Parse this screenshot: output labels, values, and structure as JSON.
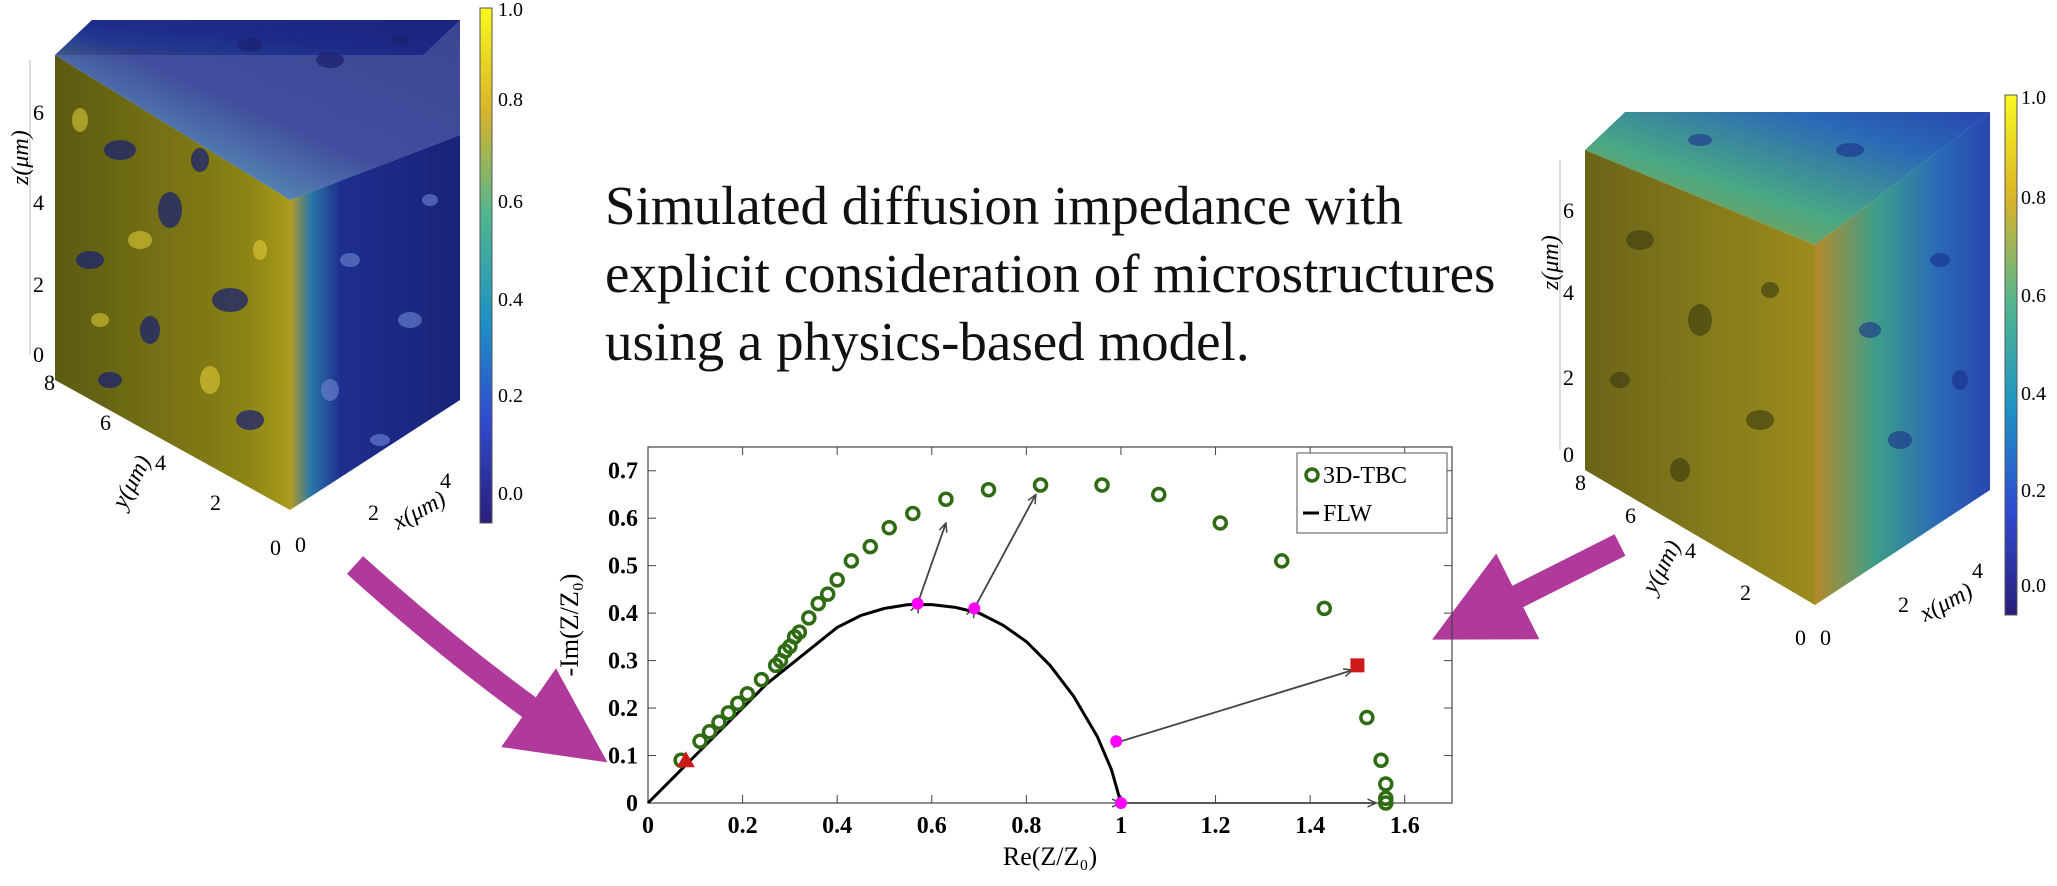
{
  "headline": {
    "line1": "Simulated diffusion impedance with",
    "line2": "explicit consideration of microstructures",
    "line3": "using a physics-based model."
  },
  "colors": {
    "tbc_marker": "#2e6b12",
    "flw_line": "#000000",
    "highlight_point": "#ff00ff",
    "red_marker": "#cc1a1a",
    "arrow_big": "#b03a9c",
    "arrow_small": "#444444",
    "cube_yellow": "#c9b21c",
    "cube_blue": "#1e2f8a"
  },
  "left_cube": {
    "colorbar_ticks": [
      "1.0",
      "0.8",
      "0.6",
      "0.4",
      "0.2",
      "0.0"
    ],
    "z_label": "z(μm)",
    "z_ticks": [
      "6",
      "4",
      "2",
      "0"
    ],
    "y_label": "y(μm)",
    "y_ticks": [
      "8",
      "6",
      "4",
      "2",
      "0"
    ],
    "x_label": "x(μm)",
    "x_ticks": [
      "0",
      "2",
      "4"
    ]
  },
  "right_cube": {
    "colorbar_ticks": [
      "1.0",
      "0.8",
      "0.6",
      "0.4",
      "0.2",
      "0.0"
    ],
    "z_label": "z(μm)",
    "z_ticks": [
      "6",
      "4",
      "2",
      "0"
    ],
    "y_label": "y(μm)",
    "y_ticks": [
      "8",
      "6",
      "4",
      "2",
      "0"
    ],
    "x_label": "x(μm)",
    "x_ticks": [
      "0",
      "2",
      "4"
    ]
  },
  "chart_data": {
    "type": "scatter",
    "title": "",
    "xlabel": "Re(Z/Z₀)",
    "ylabel": "-Im(Z/Z₀)",
    "xlim": [
      0,
      1.7
    ],
    "ylim": [
      0,
      0.75
    ],
    "x_ticks": [
      "0",
      "0.2",
      "0.4",
      "0.6",
      "0.8",
      "1",
      "1.2",
      "1.4",
      "1.6"
    ],
    "y_ticks": [
      "0",
      "0.1",
      "0.2",
      "0.3",
      "0.4",
      "0.5",
      "0.6",
      "0.7"
    ],
    "grid": false,
    "legend_position": "top-right",
    "series": [
      {
        "name": "3D-TBC",
        "marker": "circle",
        "x": [
          0.07,
          0.11,
          0.13,
          0.15,
          0.17,
          0.19,
          0.21,
          0.24,
          0.27,
          0.28,
          0.29,
          0.3,
          0.31,
          0.32,
          0.34,
          0.36,
          0.38,
          0.4,
          0.43,
          0.47,
          0.51,
          0.56,
          0.63,
          0.72,
          0.83,
          0.96,
          1.08,
          1.21,
          1.34,
          1.43,
          1.52,
          1.55,
          1.56,
          1.56,
          1.56
        ],
        "y": [
          0.09,
          0.13,
          0.15,
          0.17,
          0.19,
          0.21,
          0.23,
          0.26,
          0.29,
          0.3,
          0.32,
          0.33,
          0.35,
          0.36,
          0.39,
          0.42,
          0.44,
          0.47,
          0.51,
          0.54,
          0.58,
          0.61,
          0.64,
          0.66,
          0.67,
          0.67,
          0.65,
          0.59,
          0.51,
          0.41,
          0.18,
          0.09,
          0.04,
          0.01,
          0.0
        ]
      },
      {
        "name": "FLW",
        "line": true,
        "x": [
          0.0,
          0.05,
          0.1,
          0.15,
          0.2,
          0.25,
          0.3,
          0.35,
          0.4,
          0.45,
          0.5,
          0.55,
          0.6,
          0.65,
          0.7,
          0.75,
          0.8,
          0.85,
          0.9,
          0.95,
          0.98,
          1.0
        ],
        "y": [
          0.0,
          0.05,
          0.1,
          0.15,
          0.2,
          0.25,
          0.29,
          0.33,
          0.37,
          0.395,
          0.41,
          0.418,
          0.418,
          0.412,
          0.4,
          0.375,
          0.34,
          0.29,
          0.225,
          0.14,
          0.07,
          0.0
        ]
      }
    ],
    "highlight_points": {
      "x": [
        0.57,
        0.69,
        0.99,
        1.0
      ],
      "y": [
        0.42,
        0.41,
        0.13,
        0.0
      ]
    },
    "red_triangle": {
      "x": 0.08,
      "y": 0.09
    },
    "red_square": {
      "x": 1.5,
      "y": 0.29
    },
    "arrows": [
      {
        "from": [
          0.57,
          0.42
        ],
        "to": [
          0.63,
          0.59
        ]
      },
      {
        "from": [
          0.69,
          0.41
        ],
        "to": [
          0.82,
          0.65
        ]
      },
      {
        "from": [
          1.0,
          0.13
        ],
        "to": [
          1.49,
          0.28
        ]
      },
      {
        "from": [
          1.0,
          0.0
        ],
        "to": [
          1.54,
          0.0
        ]
      }
    ]
  }
}
